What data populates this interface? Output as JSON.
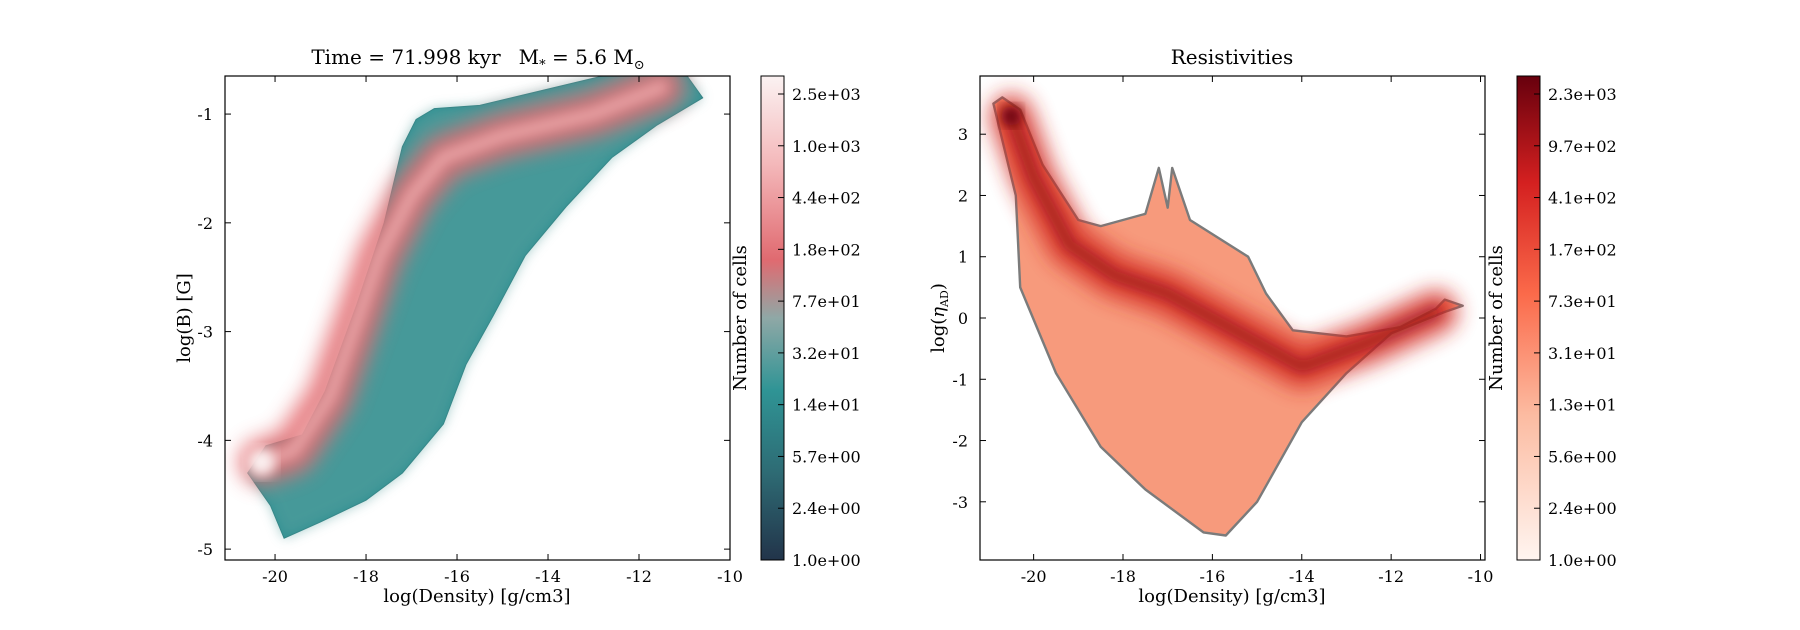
{
  "chart_data": [
    {
      "type": "heatmap",
      "title": "Time = 71.998 kyr    M$_*$ = 5.6 M$_\\odot$",
      "title_text": {
        "main": "Time = 71.998 kyr",
        "mstar": "M",
        "mstar_sub": "*",
        "mstar_val": " = 5.6 M",
        "mstar_sun": "⊙"
      },
      "xlabel": "log(Density) [g/cm3]",
      "ylabel": "log(B) [G]",
      "xlim": [
        -21.1,
        -10.0
      ],
      "ylim": [
        -5.1,
        -0.65
      ],
      "xticks": [
        -20,
        -18,
        -16,
        -14,
        -12,
        -10
      ],
      "yticks": [
        -5,
        -4,
        -3,
        -2,
        -1
      ],
      "colormap": [
        "#22344a",
        "#2e6b74",
        "#2f9495",
        "#8fa8a6",
        "#e06a70",
        "#f4b9bb",
        "#fbf2f2"
      ],
      "colorbar": {
        "label": "Number of cells",
        "ticks": [
          "2.5e+03",
          "1.0e+03",
          "4.4e+02",
          "1.8e+02",
          "7.7e+01",
          "3.2e+01",
          "1.4e+01",
          "5.7e+00",
          "2.4e+00",
          "1.0e+00"
        ]
      },
      "distribution_outline": [
        [
          -20.6,
          -4.3
        ],
        [
          -20.2,
          -4.05
        ],
        [
          -19.4,
          -3.95
        ],
        [
          -18.9,
          -3.55
        ],
        [
          -18.2,
          -2.75
        ],
        [
          -17.6,
          -2.0
        ],
        [
          -17.2,
          -1.3
        ],
        [
          -16.9,
          -1.05
        ],
        [
          -16.5,
          -0.95
        ],
        [
          -15.5,
          -0.92
        ],
        [
          -14.5,
          -0.82
        ],
        [
          -13.5,
          -0.72
        ],
        [
          -12.3,
          -0.6
        ],
        [
          -11.2,
          -0.5
        ],
        [
          -10.6,
          -0.85
        ],
        [
          -11.6,
          -1.1
        ],
        [
          -12.6,
          -1.4
        ],
        [
          -13.6,
          -1.85
        ],
        [
          -14.5,
          -2.3
        ],
        [
          -15.2,
          -2.85
        ],
        [
          -15.8,
          -3.3
        ],
        [
          -16.3,
          -3.85
        ],
        [
          -17.2,
          -4.3
        ],
        [
          -18.0,
          -4.55
        ],
        [
          -19.0,
          -4.75
        ],
        [
          -19.8,
          -4.9
        ],
        [
          -20.1,
          -4.6
        ]
      ],
      "core_ridge": [
        [
          -20.3,
          -4.2
        ],
        [
          -19.6,
          -4.1
        ],
        [
          -18.8,
          -3.6
        ],
        [
          -18.2,
          -2.9
        ],
        [
          -17.7,
          -2.3
        ],
        [
          -17.0,
          -1.75
        ],
        [
          -16.3,
          -1.4
        ],
        [
          -15.0,
          -1.2
        ],
        [
          -13.0,
          -1.0
        ],
        [
          -11.5,
          -0.75
        ]
      ]
    },
    {
      "type": "heatmap",
      "title": "Resistivities",
      "xlabel": "log(Density) [g/cm3]",
      "ylabel": "log(η_AD)",
      "ylabel_text": {
        "main": "log(",
        "eta": "η",
        "sub": "AD",
        "close": ")"
      },
      "xlim": [
        -21.2,
        -9.9
      ],
      "ylim": [
        -3.95,
        3.95
      ],
      "xticks": [
        -20,
        -18,
        -16,
        -14,
        -12,
        -10
      ],
      "yticks": [
        -3,
        -2,
        -1,
        0,
        1,
        2,
        3
      ],
      "colormap": [
        "#fff5f0",
        "#fcbba1",
        "#fb6a4a",
        "#d42020",
        "#67000d"
      ],
      "colorbar": {
        "label": "Number of cells",
        "ticks": [
          "2.3e+03",
          "9.7e+02",
          "4.1e+02",
          "1.7e+02",
          "7.3e+01",
          "3.1e+01",
          "1.3e+01",
          "5.6e+00",
          "2.4e+00",
          "1.0e+00"
        ]
      },
      "distribution_outline": [
        [
          -20.7,
          3.6
        ],
        [
          -20.3,
          3.4
        ],
        [
          -19.8,
          2.5
        ],
        [
          -19.0,
          1.6
        ],
        [
          -18.5,
          1.5
        ],
        [
          -17.5,
          1.7
        ],
        [
          -17.2,
          2.45
        ],
        [
          -17.0,
          1.8
        ],
        [
          -16.9,
          2.45
        ],
        [
          -16.5,
          1.6
        ],
        [
          -15.2,
          1.0
        ],
        [
          -14.8,
          0.4
        ],
        [
          -14.2,
          -0.2
        ],
        [
          -13.0,
          -0.3
        ],
        [
          -11.8,
          -0.15
        ],
        [
          -11.0,
          0.15
        ],
        [
          -10.8,
          0.3
        ],
        [
          -10.4,
          0.2
        ],
        [
          -10.8,
          0.1
        ],
        [
          -12.0,
          -0.25
        ],
        [
          -13.0,
          -0.9
        ],
        [
          -14.0,
          -1.7
        ],
        [
          -15.0,
          -3.0
        ],
        [
          -15.7,
          -3.55
        ],
        [
          -16.2,
          -3.5
        ],
        [
          -17.5,
          -2.8
        ],
        [
          -18.5,
          -2.1
        ],
        [
          -19.5,
          -0.9
        ],
        [
          -20.3,
          0.5
        ],
        [
          -20.4,
          2.0
        ],
        [
          -20.9,
          3.5
        ]
      ],
      "core_ridge": [
        [
          -20.5,
          3.3
        ],
        [
          -20.0,
          2.3
        ],
        [
          -19.2,
          1.2
        ],
        [
          -18.2,
          0.7
        ],
        [
          -17.0,
          0.4
        ],
        [
          -16.0,
          0.0
        ],
        [
          -15.0,
          -0.4
        ],
        [
          -14.0,
          -0.8
        ],
        [
          -12.5,
          -0.4
        ],
        [
          -11.0,
          0.1
        ]
      ]
    }
  ]
}
